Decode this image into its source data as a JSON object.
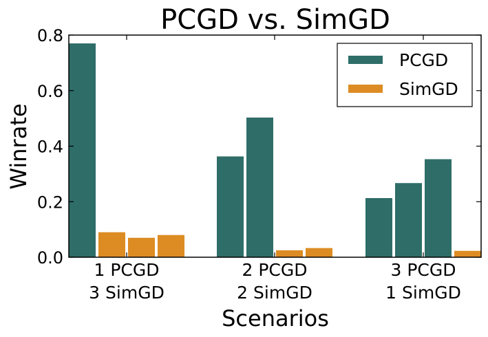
{
  "chart_data": {
    "type": "bar",
    "title": "PCGD vs. SimGD",
    "xlabel": "Scenarios",
    "ylabel": "Winrate",
    "ylim": [
      0,
      0.8
    ],
    "yticks": [
      "0.0",
      "0.2",
      "0.4",
      "0.6",
      "0.8"
    ],
    "grid": false,
    "legend_position": "top-right",
    "categories": [
      {
        "line1": "1 PCGD",
        "line2": "3 SimGD"
      },
      {
        "line1": "2 PCGD",
        "line2": "2 SimGD"
      },
      {
        "line1": "3 PCGD",
        "line2": "1 SimGD"
      }
    ],
    "series": [
      {
        "name": "PCGD",
        "color": "#2e6d68"
      },
      {
        "name": "SimGD",
        "color": "#dd8c23"
      }
    ],
    "bars": [
      [
        {
          "series": "PCGD",
          "value": 0.77
        },
        {
          "series": "SimGD",
          "value": 0.09
        },
        {
          "series": "SimGD",
          "value": 0.07
        },
        {
          "series": "SimGD",
          "value": 0.08
        }
      ],
      [
        {
          "series": "PCGD",
          "value": 0.363
        },
        {
          "series": "PCGD",
          "value": 0.503
        },
        {
          "series": "SimGD",
          "value": 0.025
        },
        {
          "series": "SimGD",
          "value": 0.033
        }
      ],
      [
        {
          "series": "PCGD",
          "value": 0.213
        },
        {
          "series": "PCGD",
          "value": 0.267
        },
        {
          "series": "PCGD",
          "value": 0.353
        },
        {
          "series": "SimGD",
          "value": 0.023
        }
      ]
    ]
  }
}
